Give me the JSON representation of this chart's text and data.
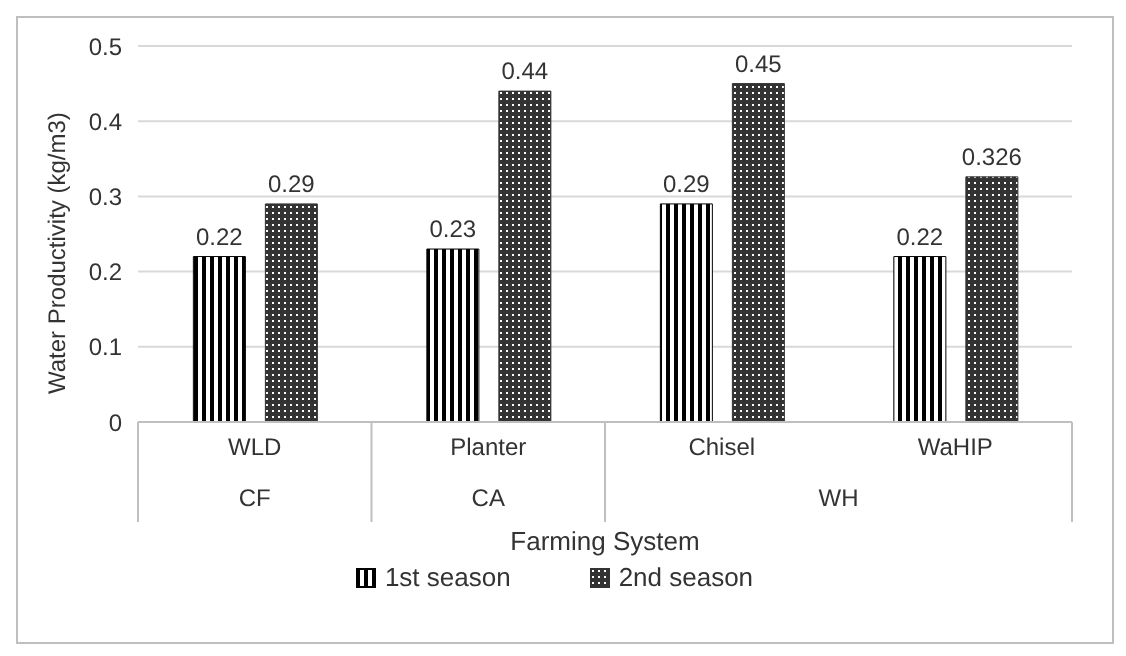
{
  "chart_data": {
    "type": "bar",
    "xlabel": "Farming System",
    "ylabel": "Water Productivity (kg/m3)",
    "categories": [
      "WLD",
      "Planter",
      "Chisel",
      "WaHIP"
    ],
    "series": [
      {
        "name": "1st season",
        "color": "#000000",
        "values": [
          0.22,
          0.23,
          0.29,
          0.22
        ]
      },
      {
        "name": "2nd season",
        "color": "#333333",
        "values": [
          0.29,
          0.44,
          0.45,
          0.326
        ]
      }
    ],
    "ylim": [
      0,
      0.5
    ],
    "yticks": [
      0,
      0.1,
      0.2,
      0.3,
      0.4,
      0.5
    ],
    "grid": "y",
    "legend": "bottom",
    "data_labels": true,
    "annotations": [
      "CF",
      "CA",
      "WH"
    ]
  }
}
